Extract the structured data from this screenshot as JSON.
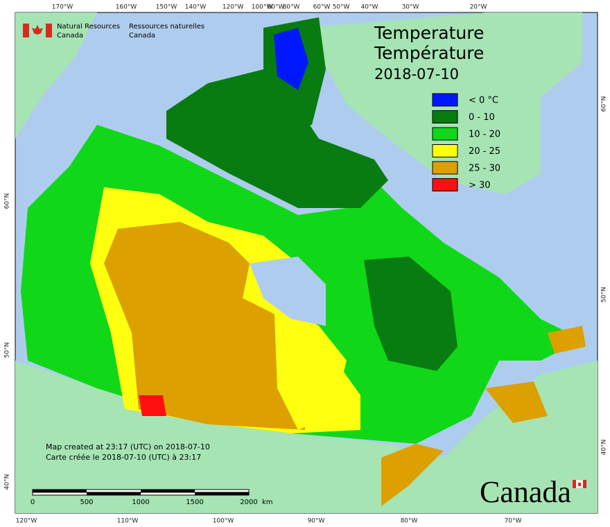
{
  "header": {
    "agency_en": [
      "Natural Resources",
      "Canada"
    ],
    "agency_fr": [
      "Ressources naturelles",
      "Canada"
    ]
  },
  "title": {
    "en": "Temperature",
    "fr": "Température",
    "date": "2018-07-10"
  },
  "legend": [
    {
      "label": "< 0 °C",
      "color": "#0018ff"
    },
    {
      "label": "0 - 10",
      "color": "#087c10"
    },
    {
      "label": "10 - 20",
      "color": "#10d818"
    },
    {
      "label": "20 - 25",
      "color": "#ffff10"
    },
    {
      "label": "25 - 30",
      "color": "#dca000"
    },
    {
      "label": "> 30",
      "color": "#ff1010"
    }
  ],
  "graticule": {
    "top": [
      "170°W",
      "160°W",
      "150°W",
      "140°W",
      "120°W",
      "100°W",
      "90°W",
      "80°W",
      "60°W",
      "50°W",
      "40°W",
      "30°W",
      "20°W"
    ],
    "bottom": [
      "120°W",
      "110°W",
      "100°W",
      "90°W",
      "80°W",
      "70°W"
    ],
    "left": [
      "60°N",
      "50°N",
      "40°N"
    ],
    "right": [
      "60°N",
      "50°N",
      "40°N"
    ]
  },
  "credits": [
    "Map created at 23:17 (UTC) on 2018-07-10",
    "Carte créée le 2018-07-10 (UTC) à 23:17"
  ],
  "scale_bar": {
    "ticks": [
      "0",
      "500",
      "1000",
      "1500",
      "2000"
    ],
    "unit": "km"
  },
  "wordmark": "Canada"
}
